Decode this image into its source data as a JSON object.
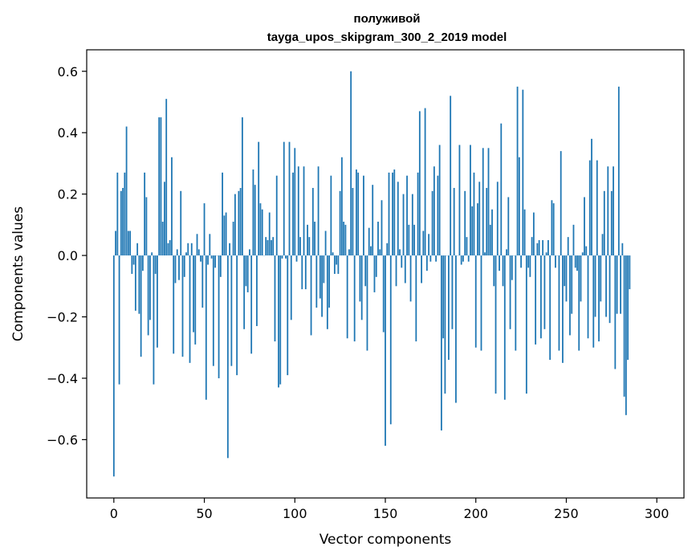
{
  "chart_data": {
    "type": "bar",
    "title": "полуживой",
    "subtitle": "tayga_upos_skipgram_300_2_2019 model",
    "xlabel": "Vector components",
    "ylabel": "Components values",
    "xlim": [
      -15,
      315
    ],
    "ylim": [
      -0.79,
      0.67
    ],
    "xticks": [
      0,
      50,
      100,
      150,
      200,
      250,
      300
    ],
    "yticks": [
      -0.6,
      -0.4,
      -0.2,
      0.0,
      0.2,
      0.4,
      0.6
    ],
    "ytick_labels": [
      "−0.6",
      "−0.4",
      "−0.2",
      "0.0",
      "0.2",
      "0.4",
      "0.6"
    ],
    "grid": false,
    "bar_color": "#1f77b4",
    "values": [
      -0.72,
      0.08,
      0.27,
      -0.42,
      0.21,
      0.22,
      0.27,
      0.42,
      0.08,
      0.08,
      -0.06,
      -0.03,
      -0.18,
      0.04,
      -0.19,
      -0.33,
      -0.05,
      0.27,
      0.19,
      -0.26,
      -0.21,
      0.01,
      -0.42,
      -0.06,
      -0.3,
      0.45,
      0.45,
      0.11,
      0.24,
      0.51,
      0.04,
      0.05,
      0.32,
      -0.32,
      -0.09,
      0.02,
      -0.08,
      0.21,
      -0.33,
      -0.07,
      0.01,
      0.04,
      -0.35,
      0.04,
      -0.25,
      -0.29,
      0.07,
      0.02,
      -0.02,
      -0.17,
      0.17,
      -0.47,
      -0.03,
      0.07,
      -0.01,
      -0.36,
      -0.04,
      0.0,
      -0.4,
      -0.07,
      0.27,
      0.13,
      0.14,
      -0.66,
      0.04,
      -0.36,
      0.11,
      0.2,
      -0.39,
      0.21,
      0.22,
      0.45,
      -0.24,
      -0.1,
      -0.12,
      0.02,
      -0.32,
      0.28,
      0.23,
      -0.23,
      0.37,
      0.17,
      0.15,
      0.0,
      0.06,
      0.05,
      0.14,
      0.05,
      0.06,
      -0.28,
      0.26,
      -0.43,
      -0.42,
      -0.01,
      0.37,
      -0.01,
      -0.39,
      0.37,
      -0.21,
      0.27,
      0.35,
      -0.02,
      0.29,
      0.06,
      -0.11,
      0.29,
      -0.11,
      0.1,
      0.06,
      -0.26,
      0.22,
      0.11,
      -0.17,
      0.29,
      -0.14,
      -0.2,
      -0.09,
      0.08,
      -0.24,
      -0.17,
      0.26,
      0.01,
      -0.06,
      -0.03,
      -0.06,
      0.21,
      0.32,
      0.11,
      0.1,
      -0.27,
      0.02,
      0.6,
      0.22,
      -0.28,
      0.28,
      0.27,
      -0.15,
      -0.21,
      0.26,
      -0.1,
      -0.31,
      0.09,
      0.03,
      0.23,
      -0.12,
      -0.07,
      0.11,
      0.02,
      0.18,
      -0.25,
      -0.62,
      0.04,
      0.27,
      -0.55,
      0.27,
      0.28,
      -0.1,
      0.24,
      0.02,
      -0.04,
      0.2,
      -0.09,
      0.26,
      0.1,
      -0.15,
      0.2,
      0.1,
      -0.28,
      0.27,
      0.47,
      -0.09,
      0.08,
      0.48,
      -0.05,
      0.07,
      -0.02,
      0.21,
      0.29,
      -0.02,
      0.26,
      0.36,
      -0.57,
      -0.27,
      -0.45,
      0.0,
      -0.34,
      0.52,
      -0.24,
      0.22,
      -0.48,
      0.0,
      0.36,
      -0.03,
      -0.02,
      0.21,
      0.06,
      -0.02,
      0.36,
      0.16,
      0.27,
      -0.3,
      0.17,
      0.24,
      -0.31,
      0.35,
      0.01,
      0.22,
      0.35,
      0.1,
      0.15,
      -0.1,
      -0.45,
      0.24,
      -0.05,
      0.43,
      -0.1,
      -0.47,
      0.02,
      0.19,
      -0.24,
      -0.08,
      0.0,
      -0.31,
      0.55,
      0.32,
      -0.04,
      0.54,
      0.15,
      -0.45,
      -0.04,
      -0.07,
      0.06,
      0.14,
      -0.29,
      0.04,
      0.05,
      -0.27,
      0.05,
      -0.24,
      0.01,
      0.05,
      -0.34,
      0.18,
      0.17,
      -0.04,
      0.0,
      -0.31,
      0.34,
      -0.35,
      -0.1,
      -0.15,
      0.06,
      -0.26,
      -0.19,
      0.1,
      -0.04,
      -0.05,
      -0.31,
      -0.15,
      0.01,
      0.19,
      0.03,
      -0.27,
      0.31,
      0.38,
      -0.3,
      -0.2,
      0.31,
      -0.28,
      -0.15,
      0.07,
      0.21,
      -0.2,
      0.29,
      -0.22,
      0.21,
      0.29,
      -0.37,
      -0.19,
      0.55,
      -0.19,
      0.04,
      -0.46,
      -0.52,
      -0.34,
      -0.11
    ]
  }
}
